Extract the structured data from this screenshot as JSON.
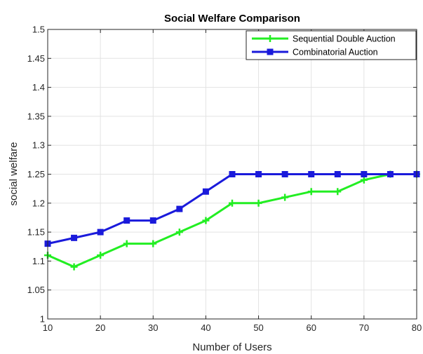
{
  "chart_data": {
    "type": "line",
    "title": "Social Welfare Comparison",
    "xlabel": "Number of Users",
    "ylabel": "social welfare",
    "xlim": [
      10,
      80
    ],
    "ylim": [
      1,
      1.5
    ],
    "x_ticks": [
      10,
      20,
      30,
      40,
      50,
      60,
      70,
      80
    ],
    "y_ticks": [
      1,
      1.05,
      1.1,
      1.15,
      1.2,
      1.25,
      1.3,
      1.35,
      1.4,
      1.45,
      1.5
    ],
    "x_tick_labels": [
      "10",
      "20",
      "30",
      "40",
      "50",
      "60",
      "70",
      "80"
    ],
    "y_tick_labels": [
      "1",
      "1.05",
      "1.1",
      "1.15",
      "1.2",
      "1.25",
      "1.3",
      "1.35",
      "1.4",
      "1.45",
      "1.5"
    ],
    "grid": true,
    "legend_position": "top-right",
    "x": [
      10,
      15,
      20,
      25,
      30,
      35,
      40,
      45,
      50,
      55,
      60,
      65,
      70,
      75,
      80
    ],
    "series": [
      {
        "name": "Sequential Double Auction",
        "color": "#22ee22",
        "marker": "plus",
        "values": [
          1.11,
          1.09,
          1.11,
          1.13,
          1.13,
          1.15,
          1.17,
          1.2,
          1.2,
          1.21,
          1.22,
          1.22,
          1.24,
          1.25,
          1.25
        ]
      },
      {
        "name": "Combinatorial Auction",
        "color": "#1a1adb",
        "marker": "square",
        "values": [
          1.13,
          1.14,
          1.15,
          1.17,
          1.17,
          1.19,
          1.22,
          1.25,
          1.25,
          1.25,
          1.25,
          1.25,
          1.25,
          1.25,
          1.25
        ]
      }
    ]
  }
}
